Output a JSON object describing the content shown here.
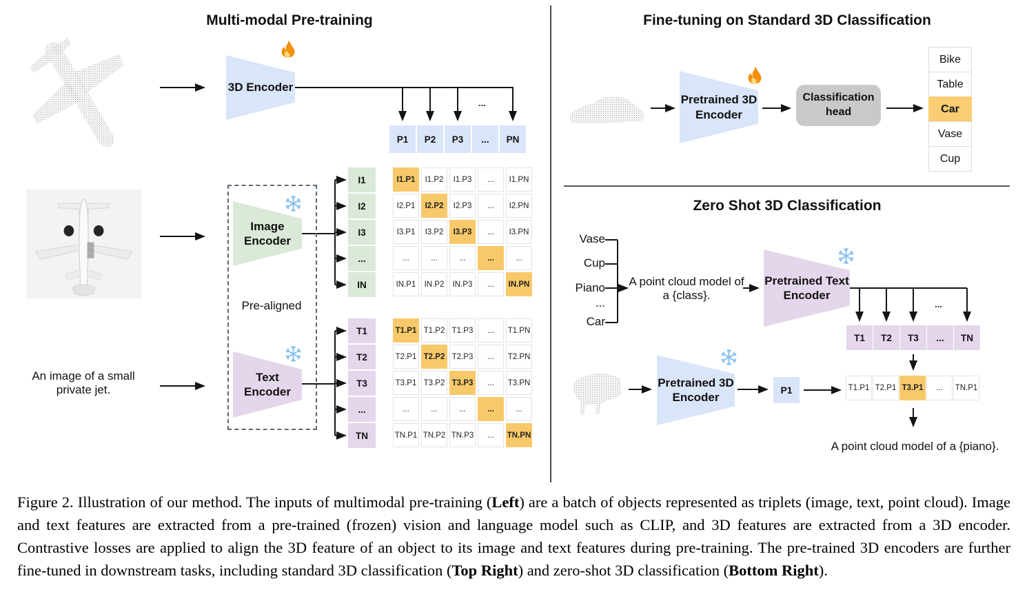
{
  "colors": {
    "blue": "#D9E5F8",
    "green": "#DAE9D8",
    "purple": "#E4D7EC",
    "highlight_orange": "#F8C96A",
    "head_gray": "#C9C9C9",
    "snowflake_blue": "#84C0EE",
    "fire_orange": "#F4900C"
  },
  "left": {
    "title": "Multi-modal Pre-training",
    "encoder_3d_label": "3D Encoder",
    "image_encoder_line1": "Image",
    "image_encoder_line2": "Encoder",
    "text_encoder_line1": "Text",
    "text_encoder_line2": "Encoder",
    "pre_aligned": "Pre-aligned",
    "input_text_line1": "An image of a small",
    "input_text_line2": "private jet.",
    "ellipsis": "...",
    "p_row": [
      "P1",
      "P2",
      "P3",
      "...",
      "PN"
    ],
    "i_column": [
      "I1",
      "I2",
      "I3",
      "...",
      "IN"
    ],
    "t_column": [
      "T1",
      "T2",
      "T3",
      "...",
      "TN"
    ],
    "image_matrix": [
      [
        "I1.P1",
        "I1.P2",
        "I1.P3",
        "...",
        "I1.PN"
      ],
      [
        "I2.P1",
        "I2.P2",
        "I2.P3",
        "...",
        "I2.PN"
      ],
      [
        "I3.P1",
        "I3.P2",
        "I3.P3",
        "...",
        "I3.PN"
      ],
      [
        "...",
        "...",
        "...",
        "...",
        "..."
      ],
      [
        "IN.P1",
        "IN.P2",
        "IN.P3",
        "...",
        "IN.PN"
      ]
    ],
    "text_matrix": [
      [
        "T1.P1",
        "T1.P2",
        "T1.P3",
        "...",
        "T1.PN"
      ],
      [
        "T2.P1",
        "T2.P2",
        "T2.P3",
        "...",
        "T2.PN"
      ],
      [
        "T3.P1",
        "T3.P2",
        "T3.P3",
        "...",
        "T3.PN"
      ],
      [
        "...",
        "...",
        "...",
        "...",
        "..."
      ],
      [
        "TN.P1",
        "TN.P2",
        "TN.P3",
        "...",
        "TN.PN"
      ]
    ]
  },
  "top_right": {
    "title": "Fine-tuning on Standard 3D Classification",
    "encoder_line1": "Pretrained 3D",
    "encoder_line2": "Encoder",
    "head_line1": "Classification",
    "head_line2": "head",
    "classes": [
      "Bike",
      "Table",
      "Car",
      "Vase",
      "Cup"
    ],
    "highlight_index": 2
  },
  "bottom_right": {
    "title": "Zero Shot 3D Classification",
    "class_list": [
      "Vase",
      "Cup",
      "Piano",
      "...",
      "Car"
    ],
    "prompt_line1": "A point cloud model of",
    "prompt_line2": "a {class}.",
    "text_encoder_line1": "Pretrained Text",
    "text_encoder_line2": "Encoder",
    "encoder_3d_line1": "Pretrained 3D",
    "encoder_3d_line2": "Encoder",
    "p_cell": "P1",
    "ellipsis": "...",
    "t_row": [
      "T1",
      "T2",
      "T3",
      "...",
      "TN"
    ],
    "similarity_row": [
      "T1.P1",
      "T2.P1",
      "T3.P1",
      "...",
      "TN.P1"
    ],
    "similarity_highlight_index": 2,
    "result_text": "A point cloud model of a {piano}."
  },
  "caption": {
    "segments": [
      {
        "t": "Figure 2. Illustration of our method. The inputs of multimodal pre-training (",
        "b": false
      },
      {
        "t": "Left",
        "b": true
      },
      {
        "t": ") are a batch of objects represented as triplets (image, text, point cloud). Image and text features are extracted from a pre-trained (frozen) vision and language model such as CLIP, and 3D features are extracted from a 3D encoder. Contrastive losses are applied to align the 3D feature of an object to its image and text features during pre-training. The pre-trained 3D encoders are further fine-tuned in downstream tasks, including standard 3D classification (",
        "b": false
      },
      {
        "t": "Top Right",
        "b": true
      },
      {
        "t": ") and zero-shot 3D classification (",
        "b": false
      },
      {
        "t": "Bottom Right",
        "b": true
      },
      {
        "t": ").",
        "b": false
      }
    ]
  }
}
